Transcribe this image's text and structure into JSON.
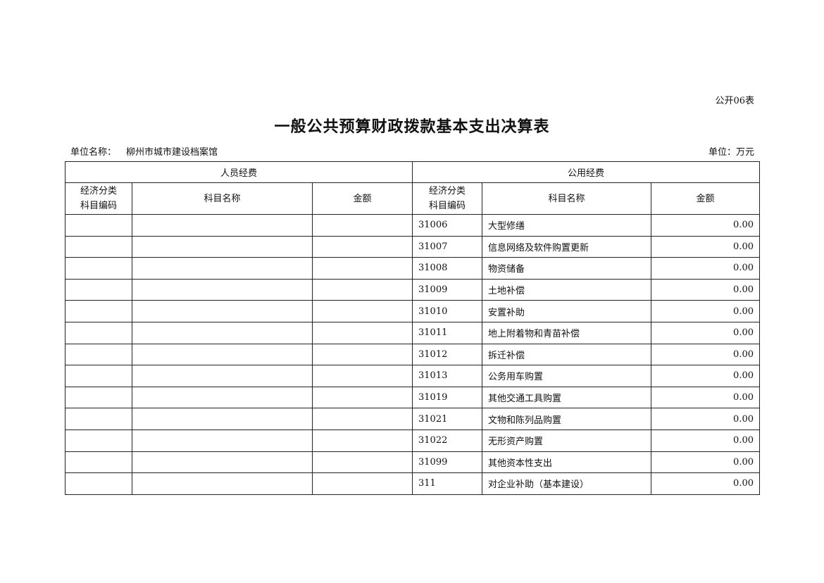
{
  "form_no": "公开06表",
  "title": "一般公共预算财政拨款基本支出决算表",
  "unit_name_label": "单位名称：",
  "unit_name": "柳州市城市建设档案馆",
  "unit": "单位：万元",
  "headers": {
    "personnel": "人员经费",
    "public": "公用经费",
    "code_line1": "经济分类",
    "code_line2": "科目编码",
    "name": "科目名称",
    "amount": "金额"
  },
  "rows": [
    {
      "code": "31006",
      "name": "大型修缮",
      "amount": "0.00"
    },
    {
      "code": "31007",
      "name": "信息网络及软件购置更新",
      "amount": "0.00"
    },
    {
      "code": "31008",
      "name": "物资储备",
      "amount": "0.00"
    },
    {
      "code": "31009",
      "name": "土地补偿",
      "amount": "0.00"
    },
    {
      "code": "31010",
      "name": "安置补助",
      "amount": "0.00"
    },
    {
      "code": "31011",
      "name": "地上附着物和青苗补偿",
      "amount": "0.00"
    },
    {
      "code": "31012",
      "name": "拆迁补偿",
      "amount": "0.00"
    },
    {
      "code": "31013",
      "name": "公务用车购置",
      "amount": "0.00"
    },
    {
      "code": "31019",
      "name": "其他交通工具购置",
      "amount": "0.00"
    },
    {
      "code": "31021",
      "name": "文物和陈列品购置",
      "amount": "0.00"
    },
    {
      "code": "31022",
      "name": "无形资产购置",
      "amount": "0.00"
    },
    {
      "code": "31099",
      "name": "其他资本性支出",
      "amount": "0.00"
    },
    {
      "code": "311",
      "name": "对企业补助（基本建设）",
      "amount": "0.00"
    }
  ]
}
